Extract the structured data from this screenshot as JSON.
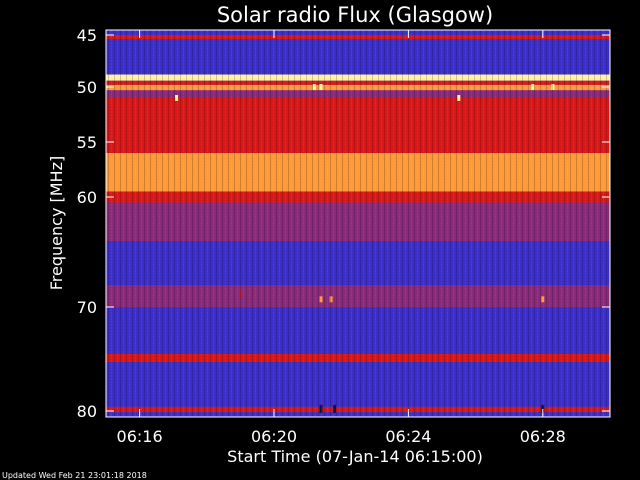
{
  "chart_data": {
    "type": "heatmap",
    "title": "Solar radio Flux (Glasgow)",
    "xlabel": "Start Time (07-Jan-14 06:15:00)",
    "ylabel": "Frequency [MHz]",
    "footer": "Updated Wed Feb 21 23:01:18 2018",
    "x_range_minutes": [
      0,
      15
    ],
    "x_ticks": [
      {
        "minute": 1,
        "label": "06:16"
      },
      {
        "minute": 5,
        "label": "06:20"
      },
      {
        "minute": 9,
        "label": "06:24"
      },
      {
        "minute": 13,
        "label": "06:28"
      }
    ],
    "y_range_mhz": [
      45,
      80.5
    ],
    "y_scale": "nonlinear",
    "y_ticks": [
      {
        "mhz": 45,
        "label": "45"
      },
      {
        "mhz": 50,
        "label": "50"
      },
      {
        "mhz": 55,
        "label": "55"
      },
      {
        "mhz": 60,
        "label": "60"
      },
      {
        "mhz": 70,
        "label": "70"
      },
      {
        "mhz": 80,
        "label": "80"
      }
    ],
    "colors": {
      "background": "#000000",
      "low": "#3c2ec8",
      "mid": "#8a2a7a",
      "high": "#d81818",
      "peak": "#ff9a3a",
      "saturated": "#fff2a0"
    },
    "bands": [
      {
        "from_mhz": 45.0,
        "to_mhz": 45.4,
        "level": "high"
      },
      {
        "from_mhz": 45.4,
        "to_mhz": 48.8,
        "level": "low"
      },
      {
        "from_mhz": 48.8,
        "to_mhz": 49.4,
        "level": "saturated"
      },
      {
        "from_mhz": 49.4,
        "to_mhz": 49.8,
        "level": "high"
      },
      {
        "from_mhz": 49.8,
        "to_mhz": 50.3,
        "level": "peak"
      },
      {
        "from_mhz": 50.3,
        "to_mhz": 51.0,
        "level": "mid"
      },
      {
        "from_mhz": 51.0,
        "to_mhz": 56.0,
        "level": "high"
      },
      {
        "from_mhz": 56.0,
        "to_mhz": 59.5,
        "level": "peak"
      },
      {
        "from_mhz": 59.5,
        "to_mhz": 60.5,
        "level": "high"
      },
      {
        "from_mhz": 60.5,
        "to_mhz": 64.0,
        "level": "mid"
      },
      {
        "from_mhz": 64.0,
        "to_mhz": 68.0,
        "level": "low"
      },
      {
        "from_mhz": 68.0,
        "to_mhz": 70.0,
        "level": "mid"
      },
      {
        "from_mhz": 70.0,
        "to_mhz": 74.5,
        "level": "low"
      },
      {
        "from_mhz": 74.5,
        "to_mhz": 75.3,
        "level": "high"
      },
      {
        "from_mhz": 75.3,
        "to_mhz": 79.6,
        "level": "low"
      },
      {
        "from_mhz": 79.6,
        "to_mhz": 80.1,
        "level": "high"
      },
      {
        "from_mhz": 80.1,
        "to_mhz": 80.5,
        "level": "low"
      }
    ],
    "bursts": [
      {
        "minute": 2.1,
        "mhz": 51.0,
        "level": "saturated"
      },
      {
        "minute": 4.0,
        "mhz": 68.8,
        "level": "high"
      },
      {
        "minute": 6.2,
        "mhz": 50.0,
        "level": "saturated"
      },
      {
        "minute": 6.4,
        "mhz": 50.0,
        "level": "saturated"
      },
      {
        "minute": 6.4,
        "mhz": 69.3,
        "level": "peak"
      },
      {
        "minute": 6.7,
        "mhz": 69.3,
        "level": "peak"
      },
      {
        "minute": 10.5,
        "mhz": 51.0,
        "level": "saturated"
      },
      {
        "minute": 12.7,
        "mhz": 50.0,
        "level": "saturated"
      },
      {
        "minute": 13.0,
        "mhz": 69.3,
        "level": "peak"
      },
      {
        "minute": 13.3,
        "mhz": 50.0,
        "level": "saturated"
      }
    ],
    "dropouts": [
      {
        "minute": 6.4,
        "mhz": 79.8
      },
      {
        "minute": 6.8,
        "mhz": 79.8
      },
      {
        "minute": 13.0,
        "mhz": 79.8
      }
    ]
  }
}
